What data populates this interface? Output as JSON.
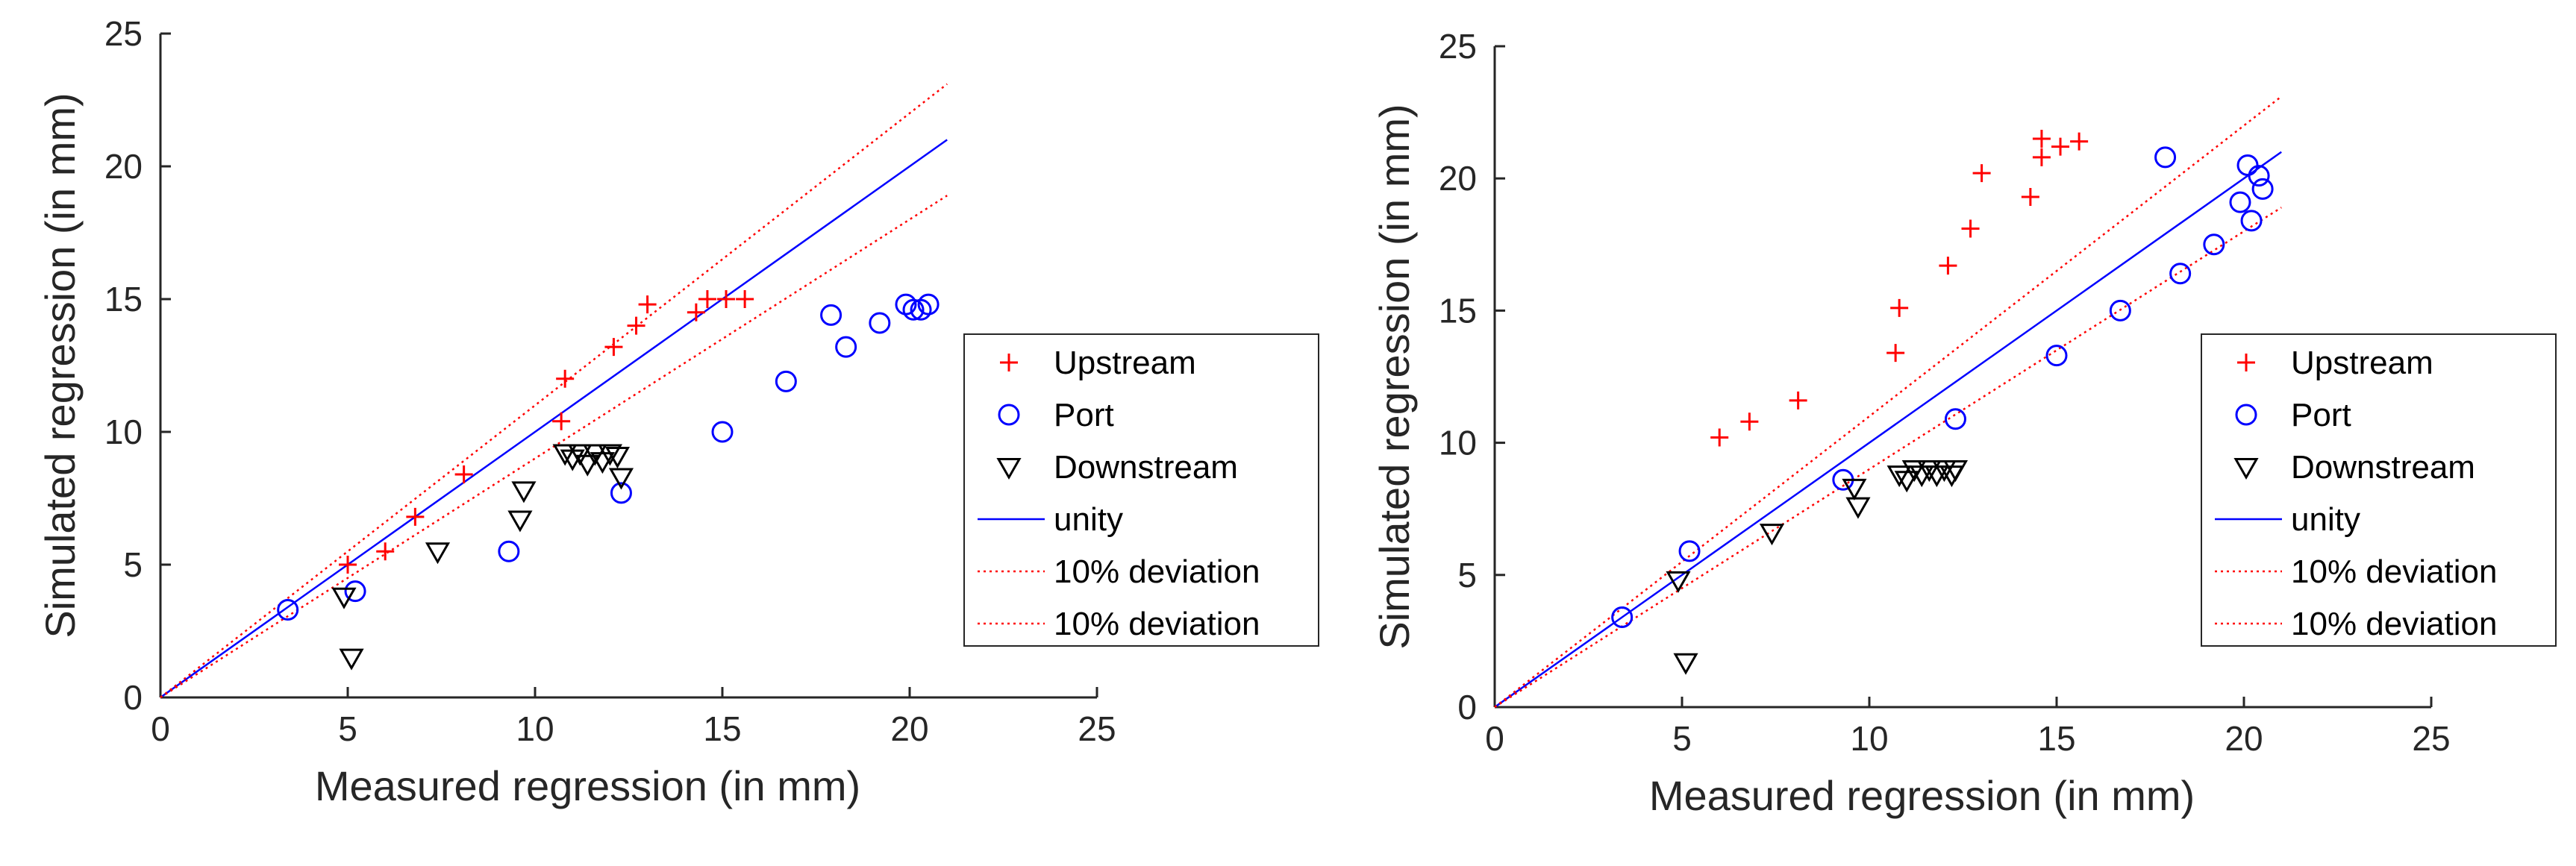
{
  "chart_data": [
    {
      "type": "scatter",
      "title": "",
      "xlabel": "Measured regression (in mm)",
      "ylabel": "Simulated regression (in mm)",
      "xlim": [
        0,
        25
      ],
      "ylim": [
        0,
        25
      ],
      "xticks": [
        0,
        5,
        10,
        15,
        20,
        25
      ],
      "yticks": [
        0,
        5,
        10,
        15,
        20,
        25
      ],
      "grid": false,
      "legend_position": "right",
      "series": [
        {
          "name": "Upstream",
          "marker": "plus",
          "color": "#ff0000",
          "points": [
            [
              5.0,
              5.0
            ],
            [
              6.0,
              5.5
            ],
            [
              6.8,
              6.8
            ],
            [
              8.1,
              8.4
            ],
            [
              10.7,
              10.4
            ],
            [
              10.8,
              12.0
            ],
            [
              12.1,
              13.2
            ],
            [
              12.7,
              14.0
            ],
            [
              13.0,
              14.8
            ],
            [
              14.3,
              14.5
            ],
            [
              14.6,
              15.0
            ],
            [
              15.1,
              15.0
            ],
            [
              15.6,
              15.0
            ]
          ]
        },
        {
          "name": "Port",
          "marker": "circle",
          "color": "#0000ff",
          "points": [
            [
              3.4,
              3.3
            ],
            [
              5.2,
              4.0
            ],
            [
              9.3,
              5.5
            ],
            [
              12.3,
              7.7
            ],
            [
              15.0,
              10.0
            ],
            [
              16.7,
              11.9
            ],
            [
              17.9,
              14.4
            ],
            [
              18.3,
              13.2
            ],
            [
              19.2,
              14.1
            ],
            [
              19.9,
              14.8
            ],
            [
              20.1,
              14.6
            ],
            [
              20.3,
              14.6
            ],
            [
              20.5,
              14.8
            ]
          ]
        },
        {
          "name": "Downstream",
          "marker": "triangle-down",
          "color": "#000000",
          "points": [
            [
              4.9,
              3.8
            ],
            [
              5.1,
              1.5
            ],
            [
              7.4,
              5.5
            ],
            [
              9.6,
              6.7
            ],
            [
              9.7,
              7.8
            ],
            [
              10.8,
              9.2
            ],
            [
              11.0,
              9.0
            ],
            [
              11.2,
              9.2
            ],
            [
              11.4,
              8.8
            ],
            [
              11.6,
              9.2
            ],
            [
              11.8,
              8.9
            ],
            [
              12.0,
              9.2
            ],
            [
              12.2,
              9.1
            ],
            [
              12.3,
              8.3
            ]
          ]
        }
      ],
      "lines": [
        {
          "name": "unity",
          "style": "solid",
          "color": "#0000ff",
          "x": [
            0,
            21
          ],
          "y": [
            0,
            21
          ]
        },
        {
          "name": "10% deviation",
          "style": "dotted",
          "color": "#ff0000",
          "x": [
            0,
            21
          ],
          "y": [
            0,
            23.1
          ]
        },
        {
          "name": "10% deviation",
          "style": "dotted",
          "color": "#ff0000",
          "x": [
            0,
            21
          ],
          "y": [
            0,
            18.9
          ]
        }
      ]
    },
    {
      "type": "scatter",
      "title": "",
      "xlabel": "Measured regression (in mm)",
      "ylabel": "Simulated regression (in mm)",
      "xlim": [
        0,
        25
      ],
      "ylim": [
        0,
        25
      ],
      "xticks": [
        0,
        5,
        10,
        15,
        20,
        25
      ],
      "yticks": [
        0,
        5,
        10,
        15,
        20,
        25
      ],
      "grid": false,
      "legend_position": "right",
      "series": [
        {
          "name": "Upstream",
          "marker": "plus",
          "color": "#ff0000",
          "points": [
            [
              6.0,
              10.2
            ],
            [
              6.8,
              10.8
            ],
            [
              8.1,
              11.6
            ],
            [
              10.7,
              13.4
            ],
            [
              10.8,
              15.1
            ],
            [
              12.1,
              16.7
            ],
            [
              12.7,
              18.1
            ],
            [
              13.0,
              20.2
            ],
            [
              14.3,
              19.3
            ],
            [
              14.6,
              21.5
            ],
            [
              14.6,
              20.8
            ],
            [
              15.1,
              21.2
            ],
            [
              15.6,
              21.4
            ]
          ]
        },
        {
          "name": "Port",
          "marker": "circle",
          "color": "#0000ff",
          "points": [
            [
              3.4,
              3.4
            ],
            [
              5.2,
              5.9
            ],
            [
              9.3,
              8.6
            ],
            [
              12.3,
              10.9
            ],
            [
              15.0,
              13.3
            ],
            [
              16.7,
              15.0
            ],
            [
              17.9,
              20.8
            ],
            [
              18.3,
              16.4
            ],
            [
              19.2,
              17.5
            ],
            [
              19.9,
              19.1
            ],
            [
              20.1,
              20.5
            ],
            [
              20.2,
              18.4
            ],
            [
              20.4,
              20.1
            ],
            [
              20.5,
              19.6
            ]
          ]
        },
        {
          "name": "Downstream",
          "marker": "triangle-down",
          "color": "#000000",
          "points": [
            [
              4.9,
              4.8
            ],
            [
              5.1,
              1.7
            ],
            [
              7.4,
              6.6
            ],
            [
              9.6,
              8.3
            ],
            [
              9.7,
              7.6
            ],
            [
              10.8,
              8.8
            ],
            [
              11.0,
              8.6
            ],
            [
              11.2,
              9.0
            ],
            [
              11.4,
              8.8
            ],
            [
              11.6,
              9.0
            ],
            [
              11.8,
              8.8
            ],
            [
              12.0,
              9.0
            ],
            [
              12.2,
              8.8
            ],
            [
              12.3,
              9.0
            ]
          ]
        }
      ],
      "lines": [
        {
          "name": "unity",
          "style": "solid",
          "color": "#0000ff",
          "x": [
            0,
            21
          ],
          "y": [
            0,
            21
          ]
        },
        {
          "name": "10% deviation",
          "style": "dotted",
          "color": "#ff0000",
          "x": [
            0,
            21
          ],
          "y": [
            0,
            23.1
          ]
        },
        {
          "name": "10% deviation",
          "style": "dotted",
          "color": "#ff0000",
          "x": [
            0,
            21
          ],
          "y": [
            0,
            18.9
          ]
        }
      ]
    }
  ]
}
